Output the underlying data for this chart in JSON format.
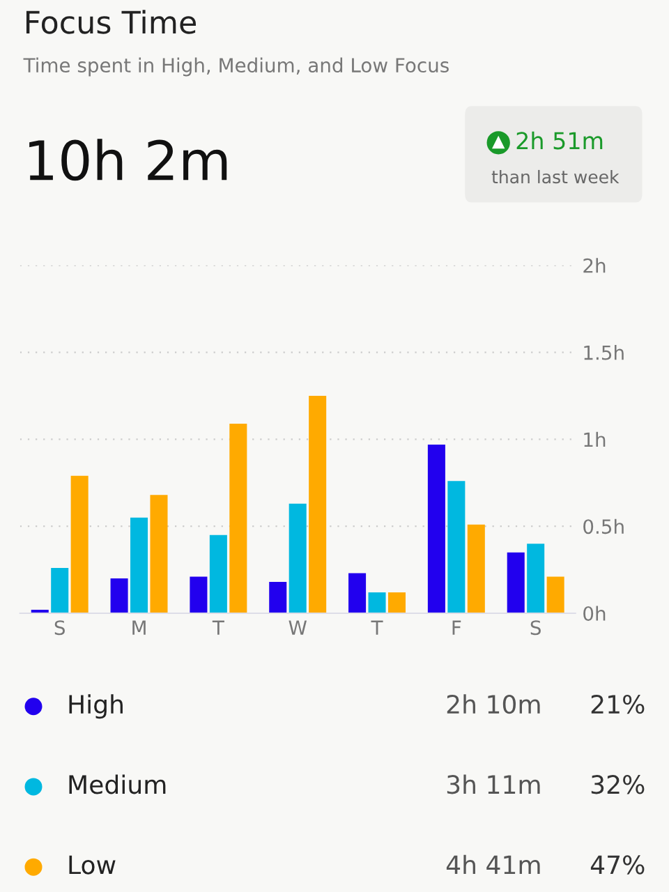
{
  "chart_data": {
    "type": "bar",
    "title": "Focus Time",
    "subtitle": "Time spent in High, Medium, and Low Focus",
    "annotations": [
      "10h 2m",
      "2h 51m",
      "than last week",
      "2h 10m",
      "21%",
      "3h 11m",
      "32%",
      "4h 41m",
      "47%"
    ],
    "categories": [
      "S",
      "M",
      "T",
      "W",
      "T",
      "F",
      "S"
    ],
    "series": [
      {
        "name": "High",
        "color": "#2200ee",
        "values": [
          0.02,
          0.2,
          0.21,
          0.18,
          0.23,
          0.97,
          0.35
        ]
      },
      {
        "name": "Medium",
        "color": "#00b8e0",
        "values": [
          0.26,
          0.55,
          0.45,
          0.63,
          0.12,
          0.76,
          0.4
        ]
      },
      {
        "name": "Low",
        "color": "#ffaa00",
        "values": [
          0.79,
          0.68,
          1.09,
          1.25,
          0.12,
          0.51,
          0.21
        ]
      }
    ],
    "ylim": [
      0,
      2
    ],
    "yticks": [
      {
        "value": 0,
        "label": "0h"
      },
      {
        "value": 0.5,
        "label": "0.5h"
      },
      {
        "value": 1,
        "label": "1h"
      },
      {
        "value": 1.5,
        "label": "1.5h"
      },
      {
        "value": 2,
        "label": "2h"
      }
    ],
    "grid": "y",
    "legend": "bottom"
  }
}
